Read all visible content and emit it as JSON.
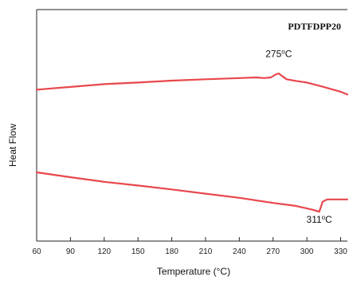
{
  "chart_data": {
    "type": "line",
    "title": "PDTFDPP20",
    "xlabel": "Temperature (°C)",
    "ylabel": "Heat Flow",
    "xlim": [
      60,
      336
    ],
    "ylim": [
      0,
      10
    ],
    "x_ticks": [
      60,
      90,
      120,
      150,
      180,
      210,
      240,
      270,
      300,
      330
    ],
    "y_ticks_shown": false,
    "grid": false,
    "line_color": "#e8474c",
    "series": [
      {
        "values": [
          [
            60,
            6.54
          ],
          [
            90,
            6.66
          ],
          [
            120,
            6.78
          ],
          [
            150,
            6.85
          ],
          [
            180,
            6.93
          ],
          [
            210,
            6.99
          ],
          [
            240,
            7.04
          ],
          [
            255,
            7.07
          ],
          [
            262,
            7.04
          ],
          [
            268,
            7.07
          ],
          [
            272,
            7.19
          ],
          [
            275,
            7.24
          ],
          [
            278,
            7.13
          ],
          [
            282,
            6.99
          ],
          [
            290,
            6.92
          ],
          [
            300,
            6.85
          ],
          [
            315,
            6.66
          ],
          [
            330,
            6.45
          ],
          [
            336,
            6.33
          ]
        ]
      },
      {
        "values": [
          [
            60,
            2.97
          ],
          [
            90,
            2.76
          ],
          [
            120,
            2.56
          ],
          [
            150,
            2.4
          ],
          [
            180,
            2.23
          ],
          [
            210,
            2.05
          ],
          [
            240,
            1.87
          ],
          [
            270,
            1.65
          ],
          [
            290,
            1.52
          ],
          [
            300,
            1.41
          ],
          [
            306,
            1.34
          ],
          [
            311,
            1.27
          ],
          [
            314,
            1.7
          ],
          [
            318,
            1.8
          ],
          [
            330,
            1.8
          ],
          [
            336,
            1.8
          ]
        ]
      }
    ],
    "annotations": [
      {
        "text": "275",
        "unit": "°C",
        "x": 275,
        "y": 7.95
      },
      {
        "text": "311",
        "unit": "°C",
        "x": 311,
        "y": 0.8
      }
    ]
  }
}
